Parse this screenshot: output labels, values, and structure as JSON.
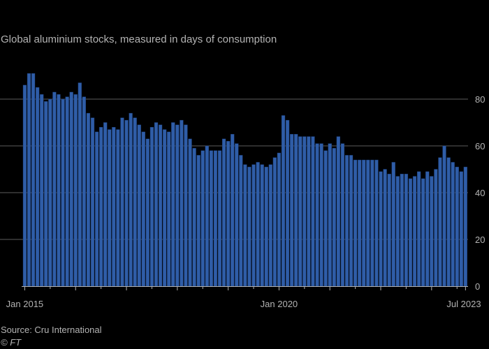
{
  "chart_data": {
    "type": "bar",
    "title": "",
    "subtitle": "Global aluminium stocks, measured in days of consumption",
    "xlabel": "",
    "ylabel": "",
    "ylim": [
      0,
      90
    ],
    "yticks": [
      0,
      20,
      40,
      60,
      80
    ],
    "grid": true,
    "x_start": "Jan 2015",
    "x_end": "Jul 2023",
    "frequency": "monthly",
    "x_tick_labels": [
      "Jan 2015",
      "Jan 2020",
      "Jul 2023"
    ],
    "values": [
      86,
      91,
      91,
      85,
      82,
      79,
      80,
      83,
      82,
      80,
      81,
      83,
      82,
      87,
      81,
      74,
      72,
      66,
      68,
      70,
      67,
      68,
      67,
      72,
      71,
      74,
      72,
      69,
      66,
      63,
      68,
      70,
      69,
      67,
      66,
      70,
      69,
      71,
      69,
      63,
      59,
      56,
      58,
      60,
      58,
      58,
      58,
      63,
      62,
      65,
      61,
      56,
      52,
      51,
      52,
      53,
      52,
      51,
      52,
      55,
      57,
      73,
      71,
      65,
      65,
      64,
      64,
      64,
      64,
      61,
      61,
      58,
      61,
      59,
      64,
      61,
      56,
      56,
      54,
      54,
      54,
      54,
      54,
      54,
      49,
      50,
      48,
      53,
      47,
      48,
      48,
      46,
      47,
      49,
      46,
      49,
      47,
      50,
      55,
      60,
      55,
      53,
      51,
      49,
      51
    ]
  },
  "source": "Source: Cru International",
  "credit": "© FT",
  "colors": {
    "bar": "#2f5da7",
    "bar_edge": "#1a3970",
    "gridline": "#5b5b5b",
    "text": "#b3b3b3",
    "background": "#000000"
  }
}
